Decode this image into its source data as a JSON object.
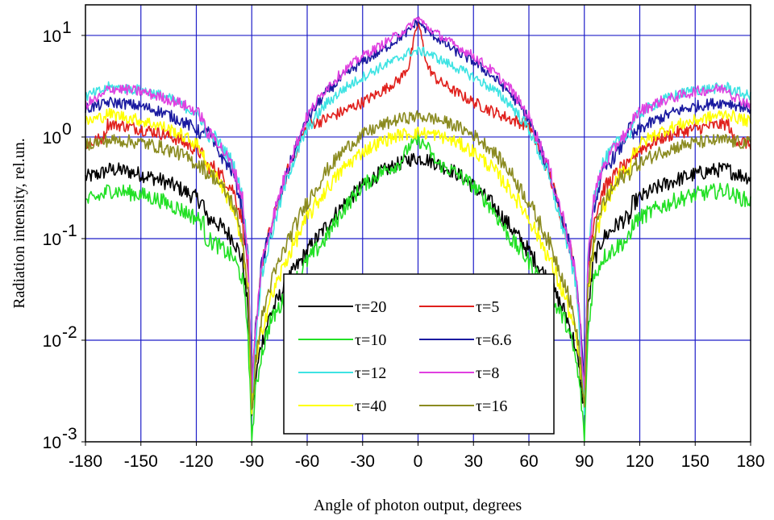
{
  "chart_data": {
    "type": "line",
    "xlabel": "Angle of photon output, degrees",
    "ylabel": "Radiation intensity, rel.un.",
    "xlim": [
      -180,
      180
    ],
    "ylim": [
      0.001,
      20
    ],
    "yscale": "log",
    "grid": true,
    "x_ticks": [
      -180,
      -150,
      -120,
      -90,
      -60,
      -30,
      0,
      30,
      60,
      90,
      120,
      150,
      180
    ],
    "x_tick_labels": [
      "-180",
      "-150",
      "-120",
      "-90",
      "-60",
      "-30",
      "0",
      "30",
      "60",
      "90",
      "120",
      "150",
      "180"
    ],
    "y_ticks": [
      {
        "value": 0.001,
        "base": "10",
        "exp": "-3"
      },
      {
        "value": 0.01,
        "base": "10",
        "exp": "-2"
      },
      {
        "value": 0.1,
        "base": "10",
        "exp": "-1"
      },
      {
        "value": 1,
        "base": "10",
        "exp": "0"
      },
      {
        "value": 10,
        "base": "10",
        "exp": "1"
      }
    ],
    "legend_position": "center-bottom",
    "x": [
      0,
      5,
      10,
      20,
      30,
      40,
      50,
      60,
      70,
      80,
      85,
      88,
      90,
      92,
      95,
      100,
      110,
      115,
      116,
      120,
      130,
      140,
      150,
      160,
      168,
      170,
      175,
      180
    ],
    "series": [
      {
        "name": "τ=20",
        "color": "#000000",
        "values": [
          0.62,
          0.6,
          0.55,
          0.45,
          0.33,
          0.22,
          0.13,
          0.075,
          0.04,
          0.018,
          0.009,
          0.004,
          0.002,
          0.02,
          0.06,
          0.1,
          0.15,
          0.16,
          0.22,
          0.25,
          0.32,
          0.38,
          0.43,
          0.47,
          0.48,
          0.45,
          0.42,
          0.4
        ]
      },
      {
        "name": "τ=5",
        "color": "#e0201c",
        "values": [
          14,
          5,
          3.7,
          2.8,
          2.2,
          1.8,
          1.5,
          1.3,
          0.5,
          0.12,
          0.05,
          0.012,
          0.003,
          0.05,
          0.15,
          0.3,
          0.5,
          0.52,
          0.65,
          0.75,
          0.95,
          1.1,
          1.2,
          1.3,
          1.35,
          1.0,
          0.9,
          0.85
        ]
      },
      {
        "name": "τ=10",
        "color": "#22e025",
        "values": [
          0.92,
          0.8,
          0.55,
          0.45,
          0.33,
          0.2,
          0.1,
          0.06,
          0.03,
          0.015,
          0.007,
          0.003,
          0.001,
          0.012,
          0.04,
          0.065,
          0.09,
          0.1,
          0.14,
          0.16,
          0.2,
          0.24,
          0.27,
          0.29,
          0.3,
          0.27,
          0.25,
          0.23
        ]
      },
      {
        "name": "τ=6.6",
        "color": "#1a1aa0",
        "values": [
          14,
          11,
          9.5,
          7,
          5.5,
          4,
          2.7,
          1.5,
          0.5,
          0.12,
          0.05,
          0.012,
          0.003,
          0.06,
          0.2,
          0.45,
          0.8,
          1.3,
          1.0,
          1.2,
          1.5,
          1.8,
          2.0,
          2.15,
          2.2,
          2.1,
          2.0,
          1.9
        ]
      },
      {
        "name": "τ=12",
        "color": "#3ee3e3",
        "values": [
          7,
          6.8,
          6,
          4.9,
          3.9,
          3.0,
          2.1,
          1.2,
          0.45,
          0.1,
          0.04,
          0.01,
          0.002,
          0.07,
          0.25,
          0.55,
          1.0,
          1.05,
          1.4,
          1.7,
          2.2,
          2.6,
          2.9,
          3.0,
          3.1,
          2.9,
          2.7,
          2.5
        ]
      },
      {
        "name": "τ=8",
        "color": "#e040e0",
        "values": [
          15,
          12,
          10.5,
          8,
          6.3,
          4.5,
          3.0,
          1.6,
          0.55,
          0.13,
          0.05,
          0.012,
          0.003,
          0.06,
          0.25,
          0.5,
          1.0,
          1.1,
          1.5,
          1.8,
          2.2,
          2.5,
          2.8,
          2.95,
          3.0,
          2.6,
          2.3,
          2.1
        ]
      },
      {
        "name": "τ=40",
        "color": "#ffff00",
        "values": [
          1.1,
          1.08,
          1.05,
          0.9,
          0.72,
          0.5,
          0.3,
          0.16,
          0.07,
          0.025,
          0.012,
          0.005,
          0.002,
          0.03,
          0.08,
          0.2,
          0.45,
          0.5,
          0.7,
          0.85,
          1.1,
          1.3,
          1.45,
          1.6,
          1.7,
          1.6,
          1.5,
          1.4
        ]
      },
      {
        "name": "τ=16",
        "color": "#8b8b20",
        "values": [
          1.6,
          1.55,
          1.5,
          1.3,
          1.05,
          0.75,
          0.45,
          0.23,
          0.1,
          0.035,
          0.015,
          0.006,
          0.002,
          0.03,
          0.1,
          0.22,
          0.4,
          0.45,
          0.5,
          0.55,
          0.7,
          0.8,
          0.88,
          0.92,
          0.93,
          0.9,
          0.88,
          0.86
        ]
      }
    ],
    "legend_order": [
      0,
      1,
      2,
      3,
      4,
      5,
      6,
      7
    ]
  }
}
